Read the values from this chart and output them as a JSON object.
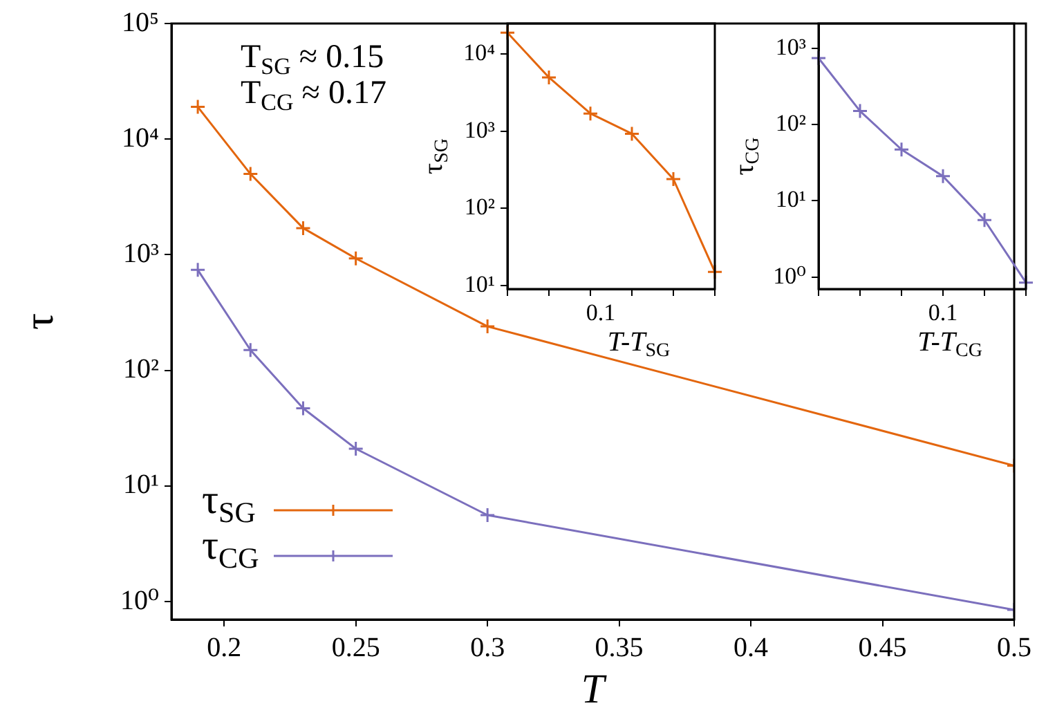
{
  "chart_data": [
    {
      "type": "line",
      "xlabel": "T",
      "ylabel": "τ",
      "x": [
        0.19,
        0.21,
        0.23,
        0.25,
        0.3,
        0.5
      ],
      "series": [
        {
          "name": "τ$_{SG}$",
          "color": "#e3660e",
          "values": [
            19000,
            5000,
            1700,
            930,
            240,
            15
          ]
        },
        {
          "name": "τ$_{CG}$",
          "color": "#7b6fbd",
          "values": [
            740,
            150,
            47,
            21,
            5.6,
            0.85
          ]
        }
      ],
      "xlim": [
        0.18,
        0.5
      ],
      "ylim": [
        0.74,
        100000
      ],
      "xticks": [
        0.2,
        0.25,
        0.3,
        0.35,
        0.4,
        0.45,
        0.5
      ],
      "yticks": [
        {
          "value": 1,
          "label": "10⁰"
        },
        {
          "value": 10,
          "label": "10¹"
        },
        {
          "value": 100,
          "label": "10²"
        },
        {
          "value": 1000,
          "label": "10³"
        },
        {
          "value": 10000,
          "label": "10⁴"
        },
        {
          "value": 100000,
          "label": "10⁵"
        }
      ],
      "log": "y",
      "legend": "bottom left",
      "marker": "cross",
      "annotations": [
        "T$_{SG}$ ≈ 0.15",
        "T$_{CG}$ ≈ 0.17"
      ]
    },
    {
      "type": "line",
      "xlabel": "T-T$_{SG}$",
      "ylabel": "τ$_{SG}$",
      "categories": [
        null,
        null,
        null,
        null,
        null,
        null
      ],
      "series": [
        {
          "color": "#e3660e",
          "values": [
            19000,
            5000,
            1700,
            930,
            240,
            15
          ]
        }
      ],
      "ylim": [
        9,
        25000
      ],
      "annotations": [
        "0.1"
      ],
      "yticks": [
        {
          "value": 10,
          "label": "10¹"
        },
        {
          "value": 100,
          "label": "10²"
        },
        {
          "value": 1000,
          "label": "10³"
        },
        {
          "value": 10000,
          "label": "10⁴"
        }
      ],
      "log": "y",
      "marker": "cross"
    },
    {
      "type": "line",
      "xlabel": "T-T$_{CG}$",
      "ylabel": "τ$_{CG}$",
      "categories": [
        null,
        null,
        null,
        null,
        null,
        null
      ],
      "series": [
        {
          "color": "#7b6fbd",
          "values": [
            740,
            150,
            47,
            21,
            5.6,
            0.85
          ]
        }
      ],
      "ylim": [
        0.7,
        2100
      ],
      "annotations": [
        "0.1"
      ],
      "yticks": [
        {
          "value": 1,
          "label": "10⁰"
        },
        {
          "value": 10,
          "label": "10¹"
        },
        {
          "value": 100,
          "label": "10²"
        },
        {
          "value": 1000,
          "label": "10³"
        }
      ],
      "log": "y",
      "marker": "cross"
    }
  ]
}
